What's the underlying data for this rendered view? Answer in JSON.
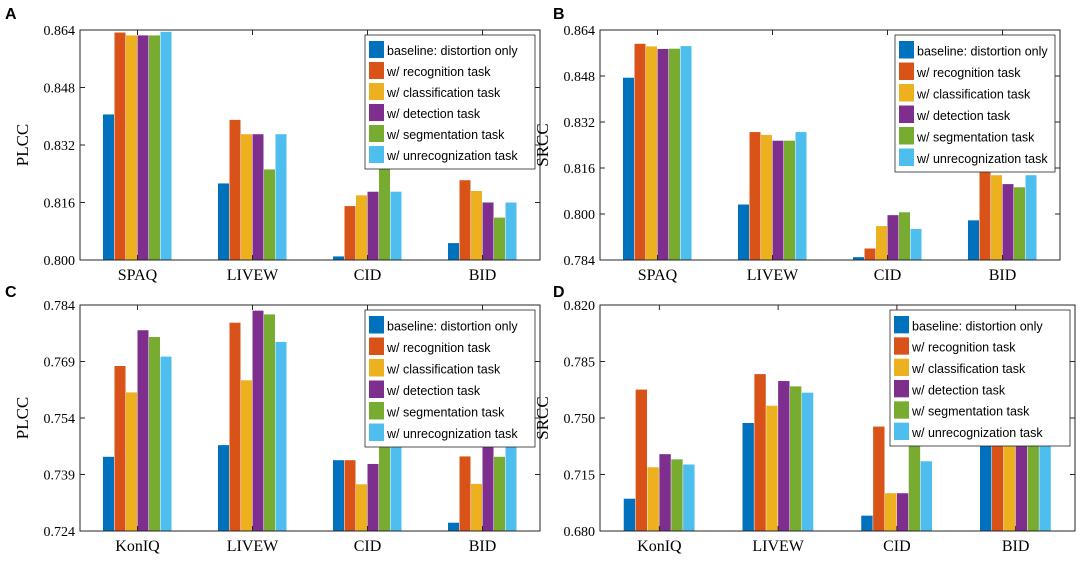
{
  "colors": [
    "#0072BD",
    "#D95319",
    "#EDB120",
    "#7E2F8E",
    "#77AC30",
    "#4DBEEE"
  ],
  "legend": [
    "baseline: distortion only",
    "w/ recognition task",
    "w/ classification task",
    "w/ detection task",
    "w/ segmentation task",
    "w/ unrecognization task"
  ],
  "chart_data": [
    {
      "panel": "A",
      "type": "bar",
      "ylabel": "PLCC",
      "ylim": [
        0.8,
        0.864
      ],
      "yticks": [
        "0.800",
        "0.816",
        "0.832",
        "0.848",
        "0.864"
      ],
      "categories": [
        "SPAQ",
        "LIVEW",
        "CID",
        "BID"
      ],
      "legend_position": "top-right",
      "series": [
        {
          "name": "baseline: distortion only",
          "values": [
            0.8405,
            0.8213,
            0.801,
            0.8047
          ]
        },
        {
          "name": "w/ recognition task",
          "values": [
            0.8633,
            0.839,
            0.815,
            0.8222
          ]
        },
        {
          "name": "w/ classification task",
          "values": [
            0.8625,
            0.835,
            0.818,
            0.8192
          ]
        },
        {
          "name": "w/ detection task",
          "values": [
            0.8625,
            0.835,
            0.819,
            0.816
          ]
        },
        {
          "name": "w/ segmentation task",
          "values": [
            0.8625,
            0.8252,
            0.8272,
            0.8118
          ]
        },
        {
          "name": "w/ unrecognization task",
          "values": [
            0.8635,
            0.835,
            0.819,
            0.816
          ]
        }
      ]
    },
    {
      "panel": "B",
      "type": "bar",
      "ylabel": "SRCC",
      "ylim": [
        0.784,
        0.864
      ],
      "yticks": [
        "0.784",
        "0.800",
        "0.816",
        "0.832",
        "0.848",
        "0.864"
      ],
      "categories": [
        "SPAQ",
        "LIVEW",
        "CID",
        "BID"
      ],
      "legend_position": "top-right",
      "series": [
        {
          "name": "baseline: distortion only",
          "values": [
            0.8474,
            0.8033,
            0.785,
            0.7978
          ]
        },
        {
          "name": "w/ recognition task",
          "values": [
            0.8592,
            0.8285,
            0.788,
            0.8168
          ]
        },
        {
          "name": "w/ classification task",
          "values": [
            0.8583,
            0.8275,
            0.7958,
            0.8135
          ]
        },
        {
          "name": "w/ detection task",
          "values": [
            0.8574,
            0.8255,
            0.7996,
            0.8104
          ]
        },
        {
          "name": "w/ segmentation task",
          "values": [
            0.8575,
            0.8255,
            0.8006,
            0.8093
          ]
        },
        {
          "name": "w/ unrecognization task",
          "values": [
            0.8584,
            0.8285,
            0.7948,
            0.8135
          ]
        }
      ]
    },
    {
      "panel": "C",
      "type": "bar",
      "ylabel": "PLCC",
      "ylim": [
        0.724,
        0.784
      ],
      "yticks": [
        "0.724",
        "0.739",
        "0.754",
        "0.769",
        "0.784"
      ],
      "categories": [
        "KonIQ",
        "LIVEW",
        "CID",
        "BID"
      ],
      "legend_position": "top-right",
      "series": [
        {
          "name": "baseline: distortion only",
          "values": [
            0.7437,
            0.7468,
            0.7428,
            0.7262
          ]
        },
        {
          "name": "w/ recognition task",
          "values": [
            0.7678,
            0.7793,
            0.7428,
            0.7438
          ]
        },
        {
          "name": "w/ classification task",
          "values": [
            0.7608,
            0.764,
            0.7364,
            0.7365
          ]
        },
        {
          "name": "w/ detection task",
          "values": [
            0.7773,
            0.7825,
            0.7418,
            0.7478
          ]
        },
        {
          "name": "w/ segmentation task",
          "values": [
            0.7755,
            0.7815,
            0.7512,
            0.7437
          ]
        },
        {
          "name": "w/ unrecognization task",
          "values": [
            0.7703,
            0.7742,
            0.7512,
            0.7467
          ]
        }
      ]
    },
    {
      "panel": "D",
      "type": "bar",
      "ylabel": "SRCC",
      "ylim": [
        0.68,
        0.82
      ],
      "yticks": [
        "0.680",
        "0.715",
        "0.750",
        "0.785",
        "0.820"
      ],
      "categories": [
        "KonIQ",
        "LIVEW",
        "CID",
        "BID"
      ],
      "legend_position": "top-right",
      "series": [
        {
          "name": "baseline: distortion only",
          "values": [
            0.7,
            0.7469,
            0.6895,
            0.7384
          ]
        },
        {
          "name": "w/ recognition task",
          "values": [
            0.7676,
            0.7772,
            0.7447,
            0.7442
          ]
        },
        {
          "name": "w/ classification task",
          "values": [
            0.7195,
            0.7576,
            0.7034,
            0.7384
          ]
        },
        {
          "name": "w/ detection task",
          "values": [
            0.7276,
            0.7729,
            0.7034,
            0.7494
          ]
        },
        {
          "name": "w/ segmentation task",
          "values": [
            0.7244,
            0.7696,
            0.7384,
            0.7469
          ]
        },
        {
          "name": "w/ unrecognization task",
          "values": [
            0.7212,
            0.7657,
            0.7232,
            0.7469
          ]
        }
      ]
    }
  ]
}
